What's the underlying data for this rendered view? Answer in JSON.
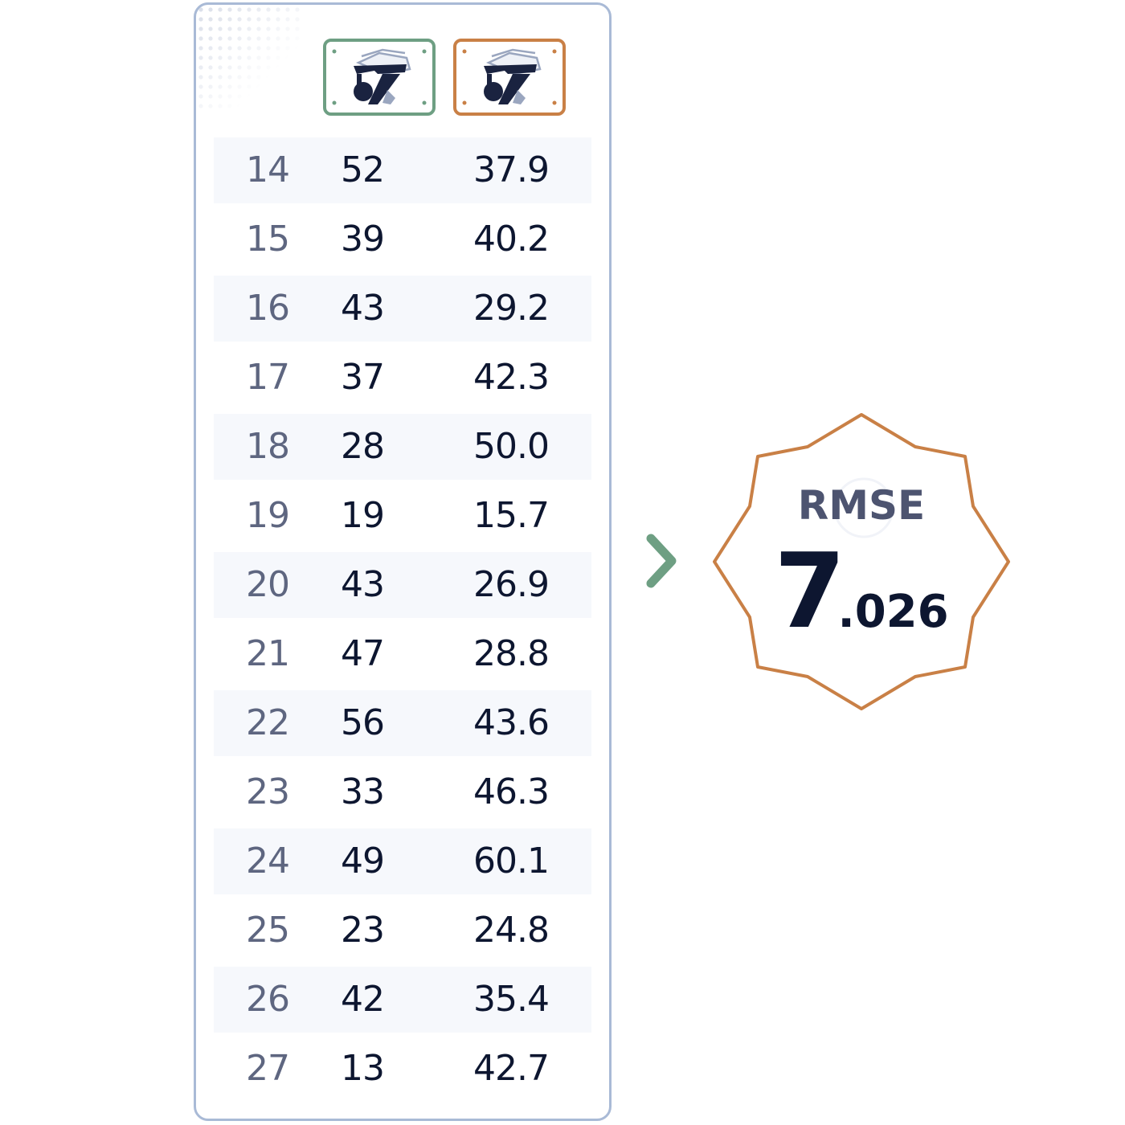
{
  "headers": [
    {
      "icon": "crane-robot-arm-icon",
      "border_color": "#6e9f83"
    },
    {
      "icon": "crane-robot-arm-icon",
      "border_color": "#c98046"
    }
  ],
  "rows": [
    {
      "idx": "14",
      "a": "52",
      "b": "37.9"
    },
    {
      "idx": "15",
      "a": "39",
      "b": "40.2"
    },
    {
      "idx": "16",
      "a": "43",
      "b": "29.2"
    },
    {
      "idx": "17",
      "a": "37",
      "b": "42.3"
    },
    {
      "idx": "18",
      "a": "28",
      "b": "50.0"
    },
    {
      "idx": "19",
      "a": "19",
      "b": "15.7"
    },
    {
      "idx": "20",
      "a": "43",
      "b": "26.9"
    },
    {
      "idx": "21",
      "a": "47",
      "b": "28.8"
    },
    {
      "idx": "22",
      "a": "56",
      "b": "43.6"
    },
    {
      "idx": "23",
      "a": "33",
      "b": "46.3"
    },
    {
      "idx": "24",
      "a": "49",
      "b": "60.1"
    },
    {
      "idx": "25",
      "a": "23",
      "b": "24.8"
    },
    {
      "idx": "26",
      "a": "42",
      "b": "35.4"
    },
    {
      "idx": "27",
      "a": "13",
      "b": "42.7"
    }
  ],
  "arrow_icon": "chevron-right-icon",
  "result": {
    "label": "RMSE",
    "value_int": "7",
    "value_frac": ".026",
    "border_color": "#c98046"
  }
}
